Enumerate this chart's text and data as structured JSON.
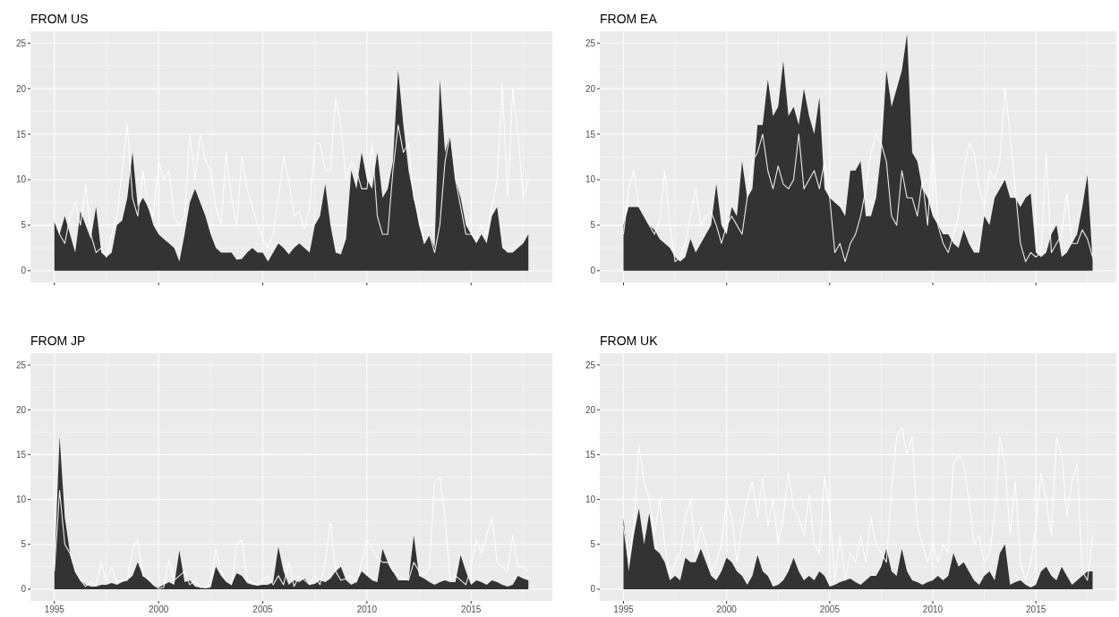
{
  "chart_data": [
    {
      "type": "area",
      "title": "FROM US",
      "tick_labels": "y",
      "grid": true,
      "xlim": [
        1993.85,
        2018.9
      ],
      "ylim": [
        -1.3,
        26.3
      ],
      "xticks": [
        1995,
        2000,
        2005,
        2010,
        2015
      ],
      "yticks": [
        0,
        5,
        10,
        15,
        20,
        25
      ],
      "x": [
        1995,
        1995.25,
        1995.5,
        1995.75,
        1996,
        1996.25,
        1996.5,
        1996.75,
        1997,
        1997.25,
        1997.5,
        1997.75,
        1998,
        1998.25,
        1998.5,
        1998.75,
        1999,
        1999.25,
        1999.5,
        1999.75,
        2000,
        2000.25,
        2000.5,
        2000.75,
        2001,
        2001.25,
        2001.5,
        2001.75,
        2002,
        2002.25,
        2002.5,
        2002.75,
        2003,
        2003.25,
        2003.5,
        2003.75,
        2004,
        2004.25,
        2004.5,
        2004.75,
        2005,
        2005.25,
        2005.5,
        2005.75,
        2006,
        2006.25,
        2006.5,
        2006.75,
        2007,
        2007.25,
        2007.5,
        2007.75,
        2008,
        2008.25,
        2008.5,
        2008.75,
        2009,
        2009.25,
        2009.5,
        2009.75,
        2010,
        2010.25,
        2010.5,
        2010.75,
        2011,
        2011.25,
        2011.5,
        2011.75,
        2012,
        2012.25,
        2012.5,
        2012.75,
        2013,
        2013.25,
        2013.5,
        2013.75,
        2014,
        2014.25,
        2014.5,
        2014.75,
        2015,
        2015.25,
        2015.5,
        2015.75,
        2016,
        2016.25,
        2016.5,
        2016.75,
        2017,
        2017.25,
        2017.5,
        2017.75
      ],
      "series": [
        {
          "color": "#333333",
          "values": [
            5.5,
            4,
            6,
            4,
            2,
            6.5,
            5,
            3.5,
            7,
            2,
            1.5,
            2,
            5,
            5.5,
            8,
            13,
            7,
            8,
            7,
            5,
            4,
            3.5,
            3,
            2.5,
            1,
            4,
            7.5,
            9,
            7.5,
            6,
            4,
            2.5,
            2,
            2,
            2,
            1.2,
            1.3,
            2,
            2.5,
            2,
            2,
            1,
            2,
            3,
            2.5,
            1.8,
            2.5,
            3,
            2.5,
            2,
            5,
            6,
            9.5,
            5,
            2,
            1.8,
            3.5,
            11,
            9,
            13,
            10,
            9,
            13,
            8,
            9,
            12,
            22,
            16,
            11,
            8,
            5,
            3,
            4,
            2.5,
            21,
            13,
            15,
            10,
            8,
            5,
            4,
            3,
            4,
            3,
            6,
            7,
            2.5,
            2,
            2,
            2.5,
            3,
            4
          ]
        },
        {
          "type": "line",
          "color": "#ffffff",
          "values": [
            5.5,
            4,
            3,
            6,
            7.5,
            5,
            9.5,
            4,
            2,
            2.5,
            1.5,
            4,
            6,
            11,
            16,
            8,
            6,
            11,
            7,
            6,
            12,
            10,
            11,
            6,
            5,
            6,
            15,
            10,
            15,
            12,
            11,
            7,
            5,
            13,
            8,
            5,
            12.5,
            9,
            7,
            5,
            3.5,
            2.5,
            4,
            8,
            12.5,
            10,
            6,
            6.5,
            4.5,
            7,
            14,
            14,
            11,
            11,
            19,
            16,
            10,
            12,
            11,
            9,
            9,
            14,
            6,
            4,
            4,
            11,
            16,
            13,
            14,
            8,
            6,
            3,
            4,
            2,
            5,
            12,
            15,
            10,
            7,
            4,
            4,
            3.5,
            5,
            4,
            7,
            10,
            20.5,
            8,
            20,
            15,
            8,
            10
          ]
        }
      ]
    },
    {
      "type": "area",
      "title": "FROM EA",
      "tick_labels": "y",
      "grid": true,
      "xlim": [
        1993.85,
        2018.9
      ],
      "ylim": [
        -1.3,
        26.3
      ],
      "xticks": [
        1995,
        2000,
        2005,
        2010,
        2015
      ],
      "yticks": [
        0,
        5,
        10,
        15,
        20,
        25
      ],
      "x": [
        1995,
        1995.25,
        1995.5,
        1995.75,
        1996,
        1996.25,
        1996.5,
        1996.75,
        1997,
        1997.25,
        1997.5,
        1997.75,
        1998,
        1998.25,
        1998.5,
        1998.75,
        1999,
        1999.25,
        1999.5,
        1999.75,
        2000,
        2000.25,
        2000.5,
        2000.75,
        2001,
        2001.25,
        2001.5,
        2001.75,
        2002,
        2002.25,
        2002.5,
        2002.75,
        2003,
        2003.25,
        2003.5,
        2003.75,
        2004,
        2004.25,
        2004.5,
        2004.75,
        2005,
        2005.25,
        2005.5,
        2005.75,
        2006,
        2006.25,
        2006.5,
        2006.75,
        2007,
        2007.25,
        2007.5,
        2007.75,
        2008,
        2008.25,
        2008.5,
        2008.75,
        2009,
        2009.25,
        2009.5,
        2009.75,
        2010,
        2010.25,
        2010.5,
        2010.75,
        2011,
        2011.25,
        2011.5,
        2011.75,
        2012,
        2012.25,
        2012.5,
        2012.75,
        2013,
        2013.25,
        2013.5,
        2013.75,
        2014,
        2014.25,
        2014.5,
        2014.75,
        2015,
        2015.25,
        2015.5,
        2015.75,
        2016,
        2016.25,
        2016.5,
        2016.75,
        2017,
        2017.25,
        2017.5,
        2017.75
      ],
      "series": [
        {
          "color": "#333333",
          "values": [
            5,
            7,
            7,
            7,
            6,
            5,
            4.5,
            3.5,
            3,
            2.5,
            1.5,
            1,
            1.5,
            3.5,
            2,
            3,
            4,
            5,
            9.5,
            5,
            4,
            7,
            6,
            12,
            8,
            9,
            16,
            16,
            21,
            17,
            18,
            23,
            17,
            18,
            16,
            20,
            17,
            15,
            19,
            9,
            8,
            7.5,
            7,
            6,
            11,
            11,
            12,
            6,
            6,
            8,
            13,
            22,
            18,
            20,
            22,
            26,
            13,
            12,
            9,
            8,
            6,
            5,
            4,
            4,
            3,
            2.5,
            4.5,
            3,
            2,
            2,
            6,
            5,
            8,
            9,
            10,
            8,
            8,
            7,
            8,
            8.5,
            2,
            1.5,
            2,
            4,
            5,
            1.5,
            2,
            3,
            4,
            7,
            10.5,
            1
          ]
        },
        {
          "type": "line",
          "color": "#ffffff",
          "values": [
            4,
            9,
            11,
            7,
            6,
            5,
            4,
            5.5,
            11,
            5,
            1,
            1.5,
            3,
            6,
            9,
            5,
            6,
            6.5,
            5,
            3,
            5,
            6,
            5,
            4,
            8,
            12,
            13,
            15,
            11,
            9,
            11.5,
            9.5,
            9,
            10,
            15,
            9,
            10,
            11,
            9,
            12,
            8,
            2,
            3,
            1,
            3,
            4,
            6,
            9,
            13,
            15,
            14,
            12,
            6,
            5,
            11,
            8,
            8,
            6,
            10,
            5,
            14,
            5,
            3,
            2,
            4,
            6,
            11,
            14,
            13,
            9,
            7,
            11,
            10,
            12,
            20,
            15,
            9,
            3,
            1,
            2,
            1.5,
            2,
            13,
            2,
            3,
            4,
            8.5,
            3,
            3,
            4.5,
            3.5,
            1.5
          ]
        }
      ]
    },
    {
      "type": "area",
      "title": "FROM JP",
      "grid": true,
      "xlim": [
        1993.85,
        2018.9
      ],
      "ylim": [
        -1.3,
        26.3
      ],
      "xticks": [
        1995,
        2000,
        2005,
        2010,
        2015
      ],
      "yticks": [
        0,
        5,
        10,
        15,
        20,
        25
      ],
      "x": [
        1995,
        1995.25,
        1995.5,
        1995.75,
        1996,
        1996.25,
        1996.5,
        1996.75,
        1997,
        1997.25,
        1997.5,
        1997.75,
        1998,
        1998.25,
        1998.5,
        1998.75,
        1999,
        1999.25,
        1999.5,
        1999.75,
        2000,
        2000.25,
        2000.5,
        2000.75,
        2001,
        2001.25,
        2001.5,
        2001.75,
        2002,
        2002.25,
        2002.5,
        2002.75,
        2003,
        2003.25,
        2003.5,
        2003.75,
        2004,
        2004.25,
        2004.5,
        2004.75,
        2005,
        2005.25,
        2005.5,
        2005.75,
        2006,
        2006.25,
        2006.5,
        2006.75,
        2007,
        2007.25,
        2007.5,
        2007.75,
        2008,
        2008.25,
        2008.5,
        2008.75,
        2009,
        2009.25,
        2009.5,
        2009.75,
        2010,
        2010.25,
        2010.5,
        2010.75,
        2011,
        2011.25,
        2011.5,
        2011.75,
        2012,
        2012.25,
        2012.5,
        2012.75,
        2013,
        2013.25,
        2013.5,
        2013.75,
        2014,
        2014.25,
        2014.5,
        2014.75,
        2015,
        2015.25,
        2015.5,
        2015.75,
        2016,
        2016.25,
        2016.5,
        2016.75,
        2017,
        2017.25,
        2017.5,
        2017.75
      ],
      "series": [
        {
          "color": "#333333",
          "values": [
            2,
            17,
            8,
            4,
            2,
            1,
            0.5,
            0.3,
            0.3,
            0.5,
            0.5,
            0.7,
            0.5,
            0.8,
            1,
            1.5,
            3,
            1.5,
            1,
            0.5,
            0.2,
            0.5,
            0.8,
            0.5,
            4.3,
            0.8,
            1,
            0.3,
            0.2,
            0.1,
            0.2,
            2.5,
            1.5,
            0.8,
            0.5,
            1.8,
            1.5,
            0.7,
            0.5,
            0.4,
            0.5,
            0.5,
            0.8,
            4.7,
            2,
            0.5,
            1,
            0.8,
            1.2,
            0.5,
            0.6,
            1,
            0.8,
            1.2,
            2,
            2.5,
            1,
            0.5,
            0.8,
            2,
            1.5,
            1,
            0.8,
            4.5,
            3,
            2,
            1,
            1,
            1,
            6,
            1.5,
            1.2,
            0.8,
            0.5,
            0.8,
            1,
            0.8,
            0.8,
            3.8,
            2,
            0.5,
            1,
            0.8,
            0.5,
            1,
            0.8,
            0.5,
            0.3,
            0.5,
            1.5,
            1.2,
            1
          ]
        },
        {
          "type": "line",
          "color": "#ffffff",
          "values": [
            2,
            11,
            5,
            4,
            2,
            1,
            0.3,
            0.8,
            0.5,
            3,
            0.8,
            2.5,
            0.8,
            1,
            1,
            4.5,
            5.5,
            1.5,
            1.2,
            0.5,
            0.1,
            0.2,
            3.3,
            1,
            1.5,
            2,
            0.5,
            1,
            0.2,
            0.3,
            0.5,
            4.5,
            2,
            1,
            0.5,
            5,
            5.5,
            1,
            0.8,
            0.5,
            1,
            1.5,
            0.5,
            1.5,
            0.5,
            3,
            0.3,
            1.5,
            1,
            0.5,
            1.5,
            0.5,
            3,
            7.5,
            2,
            1,
            1.2,
            1.5,
            0.8,
            3,
            5.5,
            4.5,
            3.5,
            3,
            3,
            2,
            1.5,
            1.2,
            1,
            3,
            2,
            1.5,
            2.5,
            12,
            12.5,
            8,
            1,
            1.5,
            1,
            0.5,
            2.5,
            5.5,
            4,
            6,
            8,
            3,
            2.5,
            2,
            6,
            2.5,
            2.5,
            2
          ]
        }
      ]
    },
    {
      "type": "area",
      "title": "FROM UK",
      "grid": true,
      "xlim": [
        1993.85,
        2018.9
      ],
      "ylim": [
        -1.3,
        26.3
      ],
      "xticks": [
        1995,
        2000,
        2005,
        2010,
        2015
      ],
      "yticks": [
        0,
        5,
        10,
        15,
        20,
        25
      ],
      "x": [
        1995,
        1995.25,
        1995.5,
        1995.75,
        1996,
        1996.25,
        1996.5,
        1996.75,
        1997,
        1997.25,
        1997.5,
        1997.75,
        1998,
        1998.25,
        1998.5,
        1998.75,
        1999,
        1999.25,
        1999.5,
        1999.75,
        2000,
        2000.25,
        2000.5,
        2000.75,
        2001,
        2001.25,
        2001.5,
        2001.75,
        2002,
        2002.25,
        2002.5,
        2002.75,
        2003,
        2003.25,
        2003.5,
        2003.75,
        2004,
        2004.25,
        2004.5,
        2004.75,
        2005,
        2005.25,
        2005.5,
        2005.75,
        2006,
        2006.25,
        2006.5,
        2006.75,
        2007,
        2007.25,
        2007.5,
        2007.75,
        2008,
        2008.25,
        2008.5,
        2008.75,
        2009,
        2009.25,
        2009.5,
        2009.75,
        2010,
        2010.25,
        2010.5,
        2010.75,
        2011,
        2011.25,
        2011.5,
        2011.75,
        2012,
        2012.25,
        2012.5,
        2012.75,
        2013,
        2013.25,
        2013.5,
        2013.75,
        2014,
        2014.25,
        2014.5,
        2014.75,
        2015,
        2015.25,
        2015.5,
        2015.75,
        2016,
        2016.25,
        2016.5,
        2016.75,
        2017,
        2017.25,
        2017.5,
        2017.75
      ],
      "series": [
        {
          "color": "#333333",
          "values": [
            8,
            2,
            6,
            9,
            5,
            8.5,
            4.5,
            4,
            3,
            1,
            1.5,
            1,
            3.5,
            3,
            3,
            4.5,
            3,
            1.5,
            1,
            2,
            3.5,
            3,
            2,
            1.5,
            0.5,
            1.5,
            3.8,
            2,
            1.5,
            0.3,
            0.5,
            1,
            2,
            3.5,
            2,
            1,
            1.5,
            1,
            2,
            1.5,
            0.3,
            0.5,
            0.8,
            1,
            1.2,
            0.8,
            0.5,
            1,
            1.5,
            1.5,
            2.5,
            4.5,
            2,
            1.5,
            4.5,
            2,
            1,
            0.8,
            0.5,
            0.8,
            1,
            1.5,
            1,
            1.5,
            4,
            2.5,
            3,
            2,
            1,
            0.5,
            1.5,
            2,
            1,
            4,
            5,
            0.5,
            0.8,
            1,
            0.5,
            0.2,
            0.5,
            2,
            2.5,
            1.5,
            1,
            2.5,
            1.5,
            0.5,
            1,
            1.5,
            2,
            2
          ]
        },
        {
          "type": "line",
          "color": "#ffffff",
          "values": [
            7,
            3,
            7,
            16,
            12,
            10,
            6,
            10,
            5,
            1.5,
            3,
            4,
            8,
            10,
            4,
            7,
            5,
            2,
            3,
            5,
            10,
            8,
            3,
            7,
            10,
            12,
            8,
            12.5,
            7,
            10,
            5,
            8,
            13,
            9,
            8,
            6,
            10.5,
            5,
            4,
            12.5,
            9,
            1,
            6,
            1,
            4,
            3,
            6,
            3,
            8,
            5,
            4,
            3,
            11,
            17,
            18,
            15,
            17,
            7,
            5,
            3,
            5,
            3,
            5,
            4,
            14,
            15,
            14,
            10,
            5,
            6,
            3,
            4,
            8,
            17,
            14,
            6,
            12,
            3,
            1,
            3,
            7,
            13,
            10,
            6,
            17,
            15,
            8,
            12,
            14,
            2,
            1,
            6
          ]
        }
      ]
    }
  ]
}
